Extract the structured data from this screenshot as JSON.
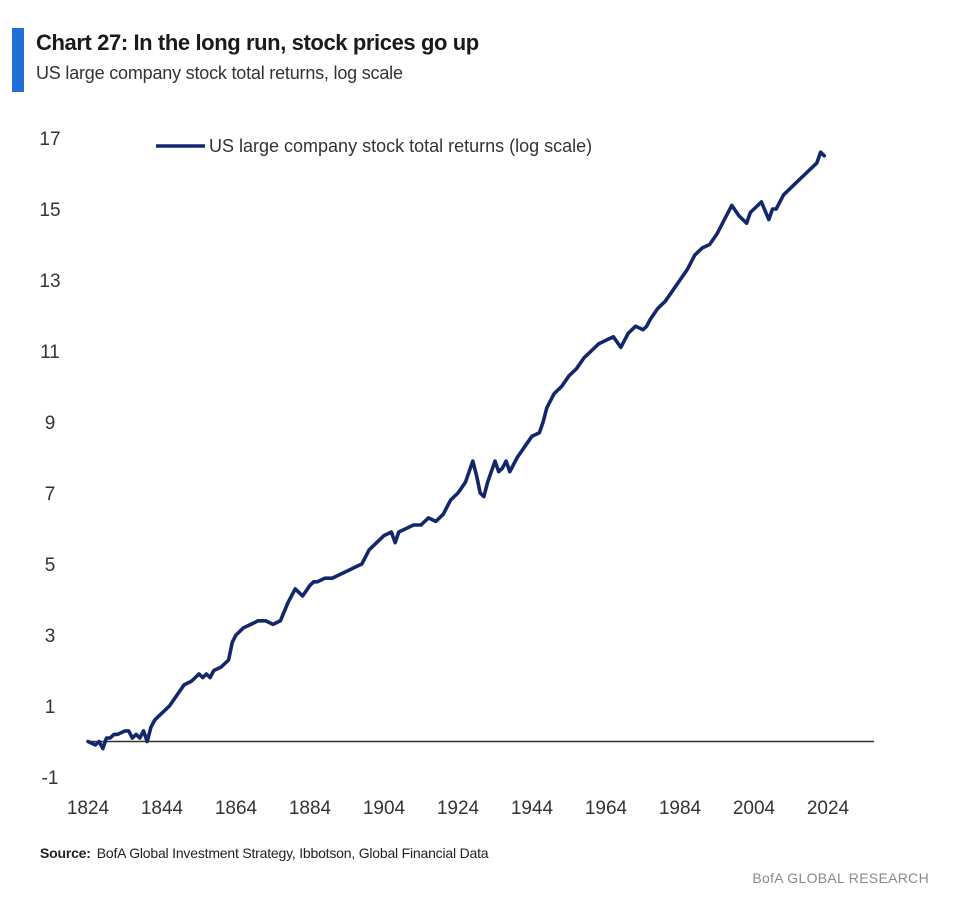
{
  "header": {
    "title": "Chart 27: In the long run, stock prices go up",
    "subtitle": "US large company stock total returns, log scale",
    "accent_color": "#1f6fd6"
  },
  "chart_data": {
    "type": "line",
    "title": "Chart 27: In the long run, stock prices go up",
    "subtitle": "US large company stock total returns, log scale",
    "xlabel": "",
    "ylabel": "",
    "xlim": [
      1824,
      2030
    ],
    "ylim": [
      -1,
      17
    ],
    "x_ticks": [
      1824,
      1844,
      1864,
      1884,
      1904,
      1924,
      1944,
      1964,
      1984,
      2004,
      2024
    ],
    "y_ticks": [
      -1,
      1,
      3,
      5,
      7,
      9,
      11,
      13,
      15,
      17
    ],
    "grid": false,
    "legend_position": "top",
    "baseline": 0,
    "line_color": "#13286b",
    "series": [
      {
        "name": "US large company stock total returns (log scale)",
        "x": [
          1824,
          1826,
          1827,
          1828,
          1829,
          1830,
          1831,
          1832,
          1834,
          1835,
          1836,
          1837,
          1838,
          1839,
          1840,
          1841,
          1842,
          1843,
          1844,
          1846,
          1848,
          1850,
          1852,
          1854,
          1855,
          1856,
          1857,
          1858,
          1860,
          1862,
          1863,
          1864,
          1866,
          1868,
          1870,
          1872,
          1874,
          1876,
          1878,
          1880,
          1881,
          1882,
          1884,
          1885,
          1886,
          1888,
          1890,
          1892,
          1894,
          1896,
          1898,
          1900,
          1902,
          1904,
          1906,
          1907,
          1908,
          1910,
          1912,
          1914,
          1916,
          1918,
          1920,
          1922,
          1924,
          1926,
          1928,
          1929,
          1930,
          1931,
          1932,
          1933,
          1934,
          1935,
          1936,
          1937,
          1938,
          1940,
          1942,
          1944,
          1946,
          1947,
          1948,
          1950,
          1952,
          1954,
          1956,
          1958,
          1960,
          1962,
          1964,
          1966,
          1968,
          1970,
          1972,
          1974,
          1975,
          1976,
          1978,
          1980,
          1982,
          1984,
          1986,
          1988,
          1990,
          1992,
          1994,
          1996,
          1998,
          2000,
          2002,
          2003,
          2004,
          2006,
          2008,
          2009,
          2010,
          2012,
          2014,
          2016,
          2018,
          2020,
          2021,
          2022,
          2023
        ],
        "values": [
          0.0,
          -0.1,
          0.0,
          -0.2,
          0.1,
          0.1,
          0.2,
          0.2,
          0.3,
          0.3,
          0.1,
          0.2,
          0.1,
          0.3,
          0.0,
          0.4,
          0.6,
          0.7,
          0.8,
          1.0,
          1.3,
          1.6,
          1.7,
          1.9,
          1.8,
          1.9,
          1.8,
          2.0,
          2.1,
          2.3,
          2.8,
          3.0,
          3.2,
          3.3,
          3.4,
          3.4,
          3.3,
          3.4,
          3.9,
          4.3,
          4.2,
          4.1,
          4.4,
          4.5,
          4.5,
          4.6,
          4.6,
          4.7,
          4.8,
          4.9,
          5.0,
          5.4,
          5.6,
          5.8,
          5.9,
          5.6,
          5.9,
          6.0,
          6.1,
          6.1,
          6.3,
          6.2,
          6.4,
          6.8,
          7.0,
          7.3,
          7.9,
          7.5,
          7.0,
          6.9,
          7.3,
          7.6,
          7.9,
          7.6,
          7.7,
          7.9,
          7.6,
          8.0,
          8.3,
          8.6,
          8.7,
          9.0,
          9.4,
          9.8,
          10.0,
          10.3,
          10.5,
          10.8,
          11.0,
          11.2,
          11.3,
          11.4,
          11.1,
          11.5,
          11.7,
          11.6,
          11.7,
          11.9,
          12.2,
          12.4,
          12.7,
          13.0,
          13.3,
          13.7,
          13.9,
          14.0,
          14.3,
          14.7,
          15.1,
          14.8,
          14.6,
          14.9,
          15.0,
          15.2,
          14.7,
          15.0,
          15.0,
          15.4,
          15.6,
          15.8,
          16.0,
          16.2,
          16.3,
          16.6,
          16.5
        ]
      }
    ]
  },
  "footer": {
    "source_label": "Source:",
    "source_text": "BofA Global Investment Strategy, Ibbotson, Global Financial Data",
    "brand": "BofA GLOBAL RESEARCH"
  }
}
